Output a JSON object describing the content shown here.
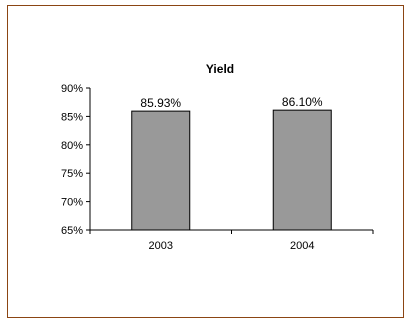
{
  "chart_data": {
    "type": "bar",
    "title": "Yield",
    "categories": [
      "2003",
      "2004"
    ],
    "values": [
      85.93,
      86.1
    ],
    "data_labels": [
      "85.93%",
      "86.10%"
    ],
    "ylim": [
      65,
      90
    ],
    "yticks": [
      {
        "value": 65,
        "label": "65%"
      },
      {
        "value": 70,
        "label": "70%"
      },
      {
        "value": 75,
        "label": "75%"
      },
      {
        "value": 80,
        "label": "80%"
      },
      {
        "value": 85,
        "label": "85%"
      },
      {
        "value": 90,
        "label": "90%"
      }
    ],
    "xlabel": "",
    "ylabel": "",
    "grid": false,
    "legend": "none",
    "colors": {
      "bar_fill": "#999999",
      "bar_stroke": "#000000",
      "frame_border": "#8B4513"
    }
  }
}
